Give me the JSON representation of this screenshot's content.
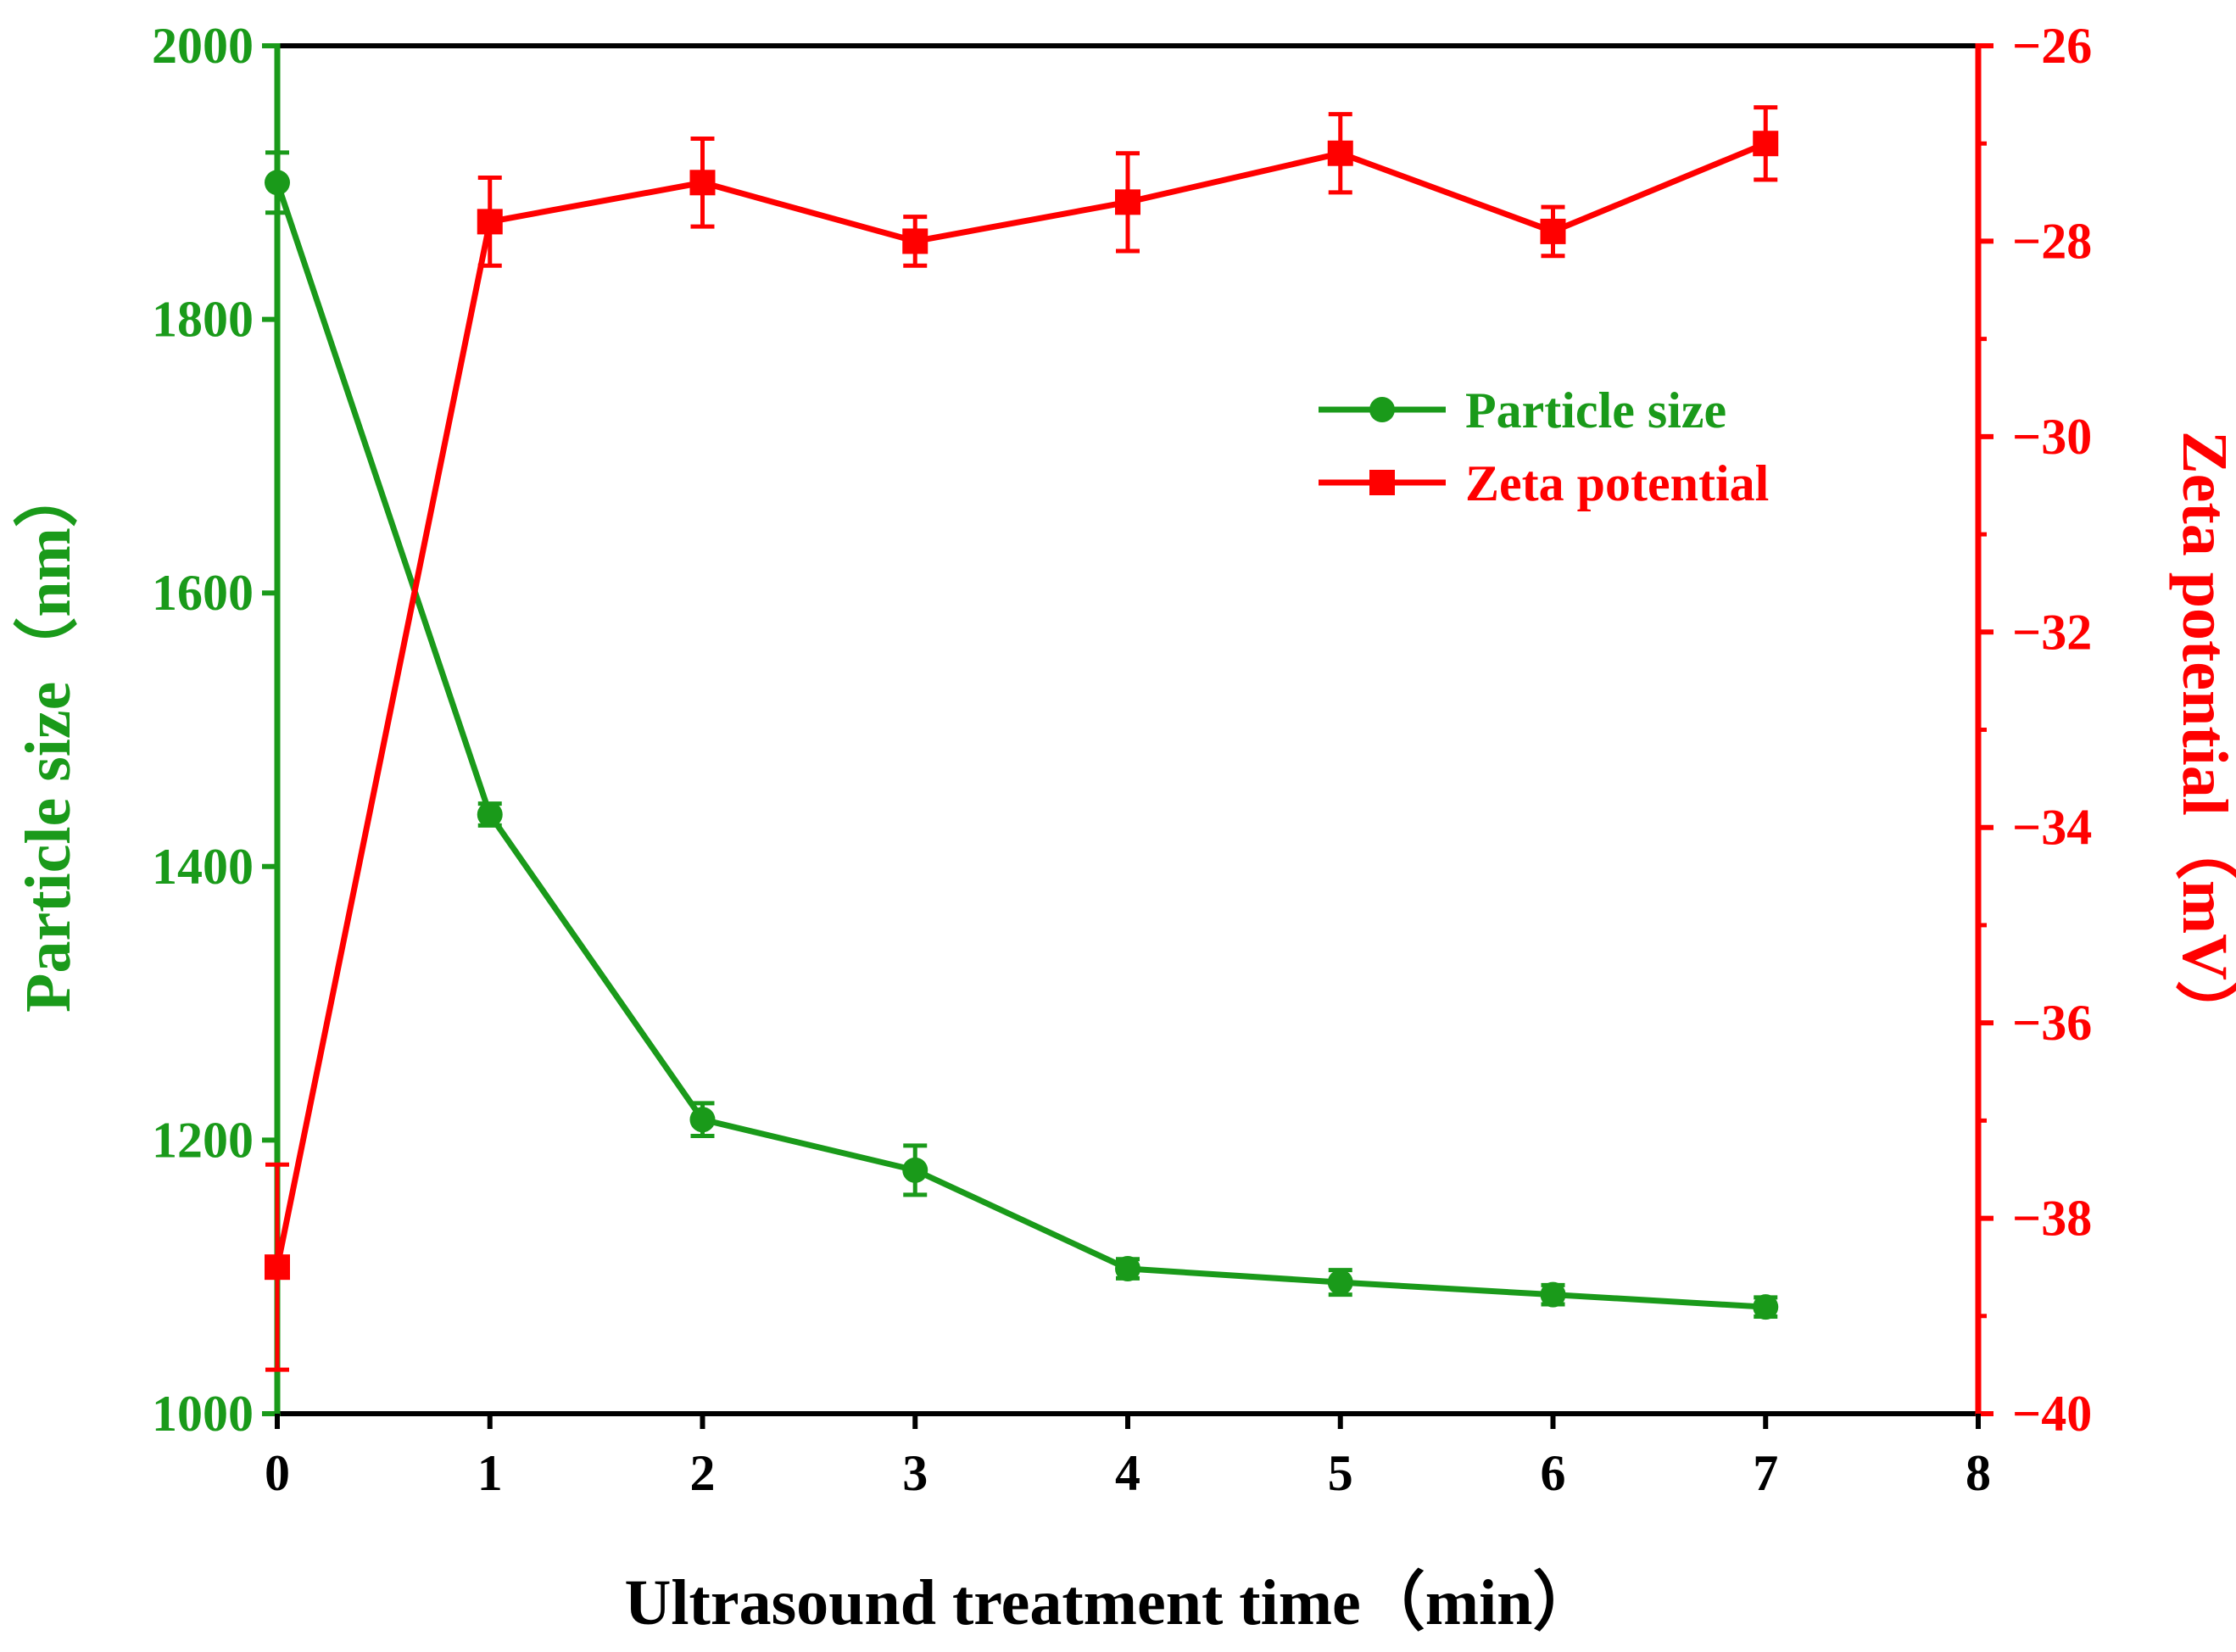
{
  "chart_data": {
    "type": "line",
    "title": "",
    "xlabel": "Ultrasound treatment time（min）",
    "ylabel_left": "Particle size（nm）",
    "ylabel_right": "Zeta potential（mV）",
    "xlim": [
      0,
      8
    ],
    "ylim_left": [
      1000,
      2000
    ],
    "ylim_right": [
      -40,
      -26
    ],
    "x_ticks": [
      "0",
      "1",
      "2",
      "3",
      "4",
      "5",
      "6",
      "7",
      "8"
    ],
    "y_left_ticks": [
      "1000",
      "1200",
      "1400",
      "1600",
      "1800",
      "2000"
    ],
    "y_right_ticks": [
      "−40",
      "−38",
      "−36",
      "−34",
      "−32",
      "−30",
      "−28",
      "−26"
    ],
    "x": [
      0,
      1,
      2,
      3,
      4,
      5,
      6,
      7
    ],
    "series": [
      {
        "name": "Particle size",
        "axis": "left",
        "color": "#1a9a1a",
        "marker": "circle",
        "values": [
          1900,
          1438,
          1215,
          1178,
          1106,
          1096,
          1087,
          1078
        ],
        "errors": [
          22,
          8,
          12,
          18,
          7,
          9,
          7,
          7
        ]
      },
      {
        "name": "Zeta potential",
        "axis": "right",
        "color": "#ff0000",
        "marker": "square",
        "values": [
          -38.5,
          -27.8,
          -27.4,
          -28.0,
          -27.6,
          -27.1,
          -27.9,
          -27.0
        ],
        "errors": [
          1.05,
          0.45,
          0.45,
          0.25,
          0.5,
          0.4,
          0.25,
          0.37
        ]
      }
    ],
    "legend_position": "upper-right-inside",
    "grid": false
  },
  "legend": {
    "items": [
      "Particle size",
      "Zeta potential"
    ]
  }
}
